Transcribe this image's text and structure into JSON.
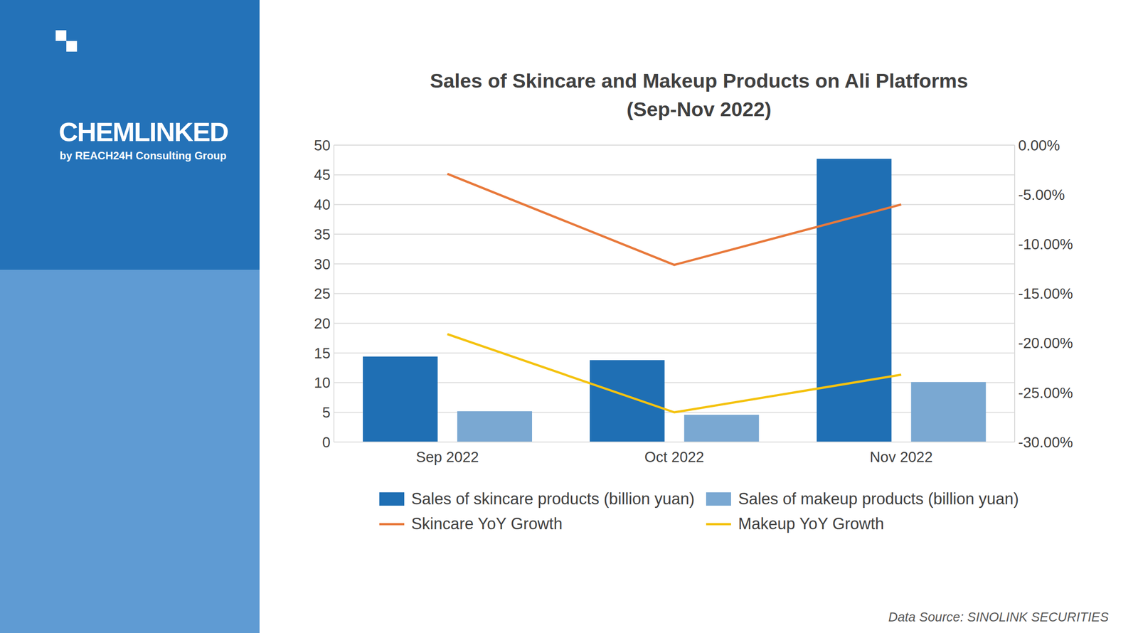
{
  "chart_data": {
    "type": "bar",
    "title": "Sales of Skincare and Makeup Products on Ali Platforms",
    "subtitle": "(Sep-Nov 2022)",
    "categories": [
      "Sep 2022",
      "Oct 2022",
      "Nov 2022"
    ],
    "series": [
      {
        "name": "Sales of skincare products (billion yuan)",
        "type": "bar",
        "color": "#1f6fb4",
        "values": [
          14.4,
          13.8,
          47.7
        ]
      },
      {
        "name": "Sales of makeup products (billion yuan)",
        "type": "bar",
        "color": "#7aa8d2",
        "values": [
          5.2,
          4.6,
          10.1
        ]
      },
      {
        "name": "Skincare YoY Growth",
        "type": "line",
        "axis": "y2",
        "color": "#e8793b",
        "marker": "none",
        "values": [
          -2.9,
          -12.1,
          -6.0
        ]
      },
      {
        "name": "Makeup YoY Growth",
        "type": "line",
        "axis": "y2",
        "color": "#f4c20f",
        "marker": "none",
        "values": [
          -19.1,
          -27.0,
          -23.2
        ]
      }
    ],
    "ylim": [
      0,
      50
    ],
    "yticks": [
      0,
      5,
      10,
      15,
      20,
      25,
      30,
      35,
      40,
      45,
      50
    ],
    "y2lim": [
      -30,
      0
    ],
    "y2ticks": [
      {
        "value": 0,
        "label": "0.00%"
      },
      {
        "value": -5,
        "label": "-5.00%"
      },
      {
        "value": -10,
        "label": "-10.00%"
      },
      {
        "value": -15,
        "label": "-15.00%"
      },
      {
        "value": -20,
        "label": "-20.00%"
      },
      {
        "value": -25,
        "label": "-25.00%"
      },
      {
        "value": -30,
        "label": "-30.00%"
      }
    ],
    "grid": true,
    "legend": "bottom",
    "annotations": [
      "CHEMLINKED",
      "by REACH24H Consulting Group",
      "Data Source: SINOLINK SECURITIES"
    ]
  }
}
